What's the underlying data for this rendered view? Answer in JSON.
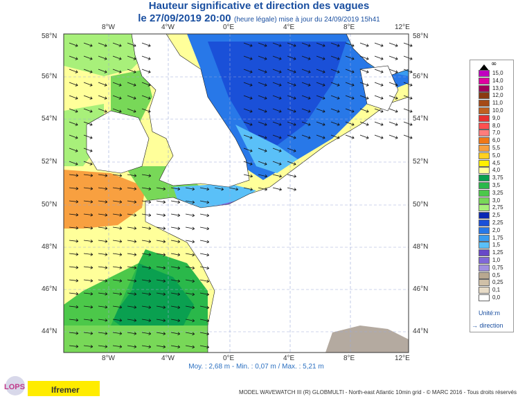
{
  "title": "Hauteur significative et direction des vagues",
  "subtitle_main": "le 27/09/2019 20:00",
  "subtitle_note": "(heure légale) mise à jour du 24/09/2019 15h41",
  "stats": "Moy. : 2,68 m   -   Min. : 0,07 m / Max. : 5,21 m",
  "footer": "MODEL WAVEWATCH III (R) GLOBMULTI - North-east Atlantic 10min grid - © MARC 2016 - Tous droits réservés",
  "logos": {
    "lops": "LOPS",
    "ifremer": "Ifremer"
  },
  "axes": {
    "lon_labels": [
      "8°W",
      "4°W",
      "0°E",
      "4°E",
      "8°E",
      "12°E"
    ],
    "lat_labels": [
      "58°N",
      "56°N",
      "54°N",
      "52°N",
      "50°N",
      "48°N",
      "46°N",
      "44°N"
    ]
  },
  "legend": {
    "unit_label": "Unité:m",
    "direction_label": "direction",
    "top_symbol": "∞",
    "levels": [
      {
        "label": "15,0",
        "color": "#c000c0"
      },
      {
        "label": "14,0",
        "color": "#e000a0"
      },
      {
        "label": "13,0",
        "color": "#a0005a"
      },
      {
        "label": "12,0",
        "color": "#8a3a10"
      },
      {
        "label": "11,0",
        "color": "#a54a18"
      },
      {
        "label": "10,0",
        "color": "#c06020"
      },
      {
        "label": "9,0",
        "color": "#e83030"
      },
      {
        "label": "8,0",
        "color": "#ff5050"
      },
      {
        "label": "7,0",
        "color": "#ff7c7c"
      },
      {
        "label": "6,0",
        "color": "#f07818"
      },
      {
        "label": "5,5",
        "color": "#f8a040"
      },
      {
        "label": "5,0",
        "color": "#ffd020"
      },
      {
        "label": "4,5",
        "color": "#fff000"
      },
      {
        "label": "4,0",
        "color": "#ffff9a"
      },
      {
        "label": "3,75",
        "color": "#0aa050"
      },
      {
        "label": "3,5",
        "color": "#2ab84a"
      },
      {
        "label": "3,25",
        "color": "#4cc84a"
      },
      {
        "label": "3,0",
        "color": "#78d858"
      },
      {
        "label": "2,75",
        "color": "#a8f07a"
      },
      {
        "label": "2,5",
        "color": "#0a28b4"
      },
      {
        "label": "2,25",
        "color": "#1a50d8"
      },
      {
        "label": "2,0",
        "color": "#2878e8"
      },
      {
        "label": "1,75",
        "color": "#3a9cf0"
      },
      {
        "label": "1,5",
        "color": "#5ac0f8"
      },
      {
        "label": "1,25",
        "color": "#6848c8"
      },
      {
        "label": "1,0",
        "color": "#8068d8"
      },
      {
        "label": "0,75",
        "color": "#a090e0"
      },
      {
        "label": "0,5",
        "color": "#b8a890"
      },
      {
        "label": "0,25",
        "color": "#d0c0a8"
      },
      {
        "label": "0,1",
        "color": "#e8dcc8"
      },
      {
        "label": "0,0",
        "color": "#ffffff"
      }
    ]
  }
}
